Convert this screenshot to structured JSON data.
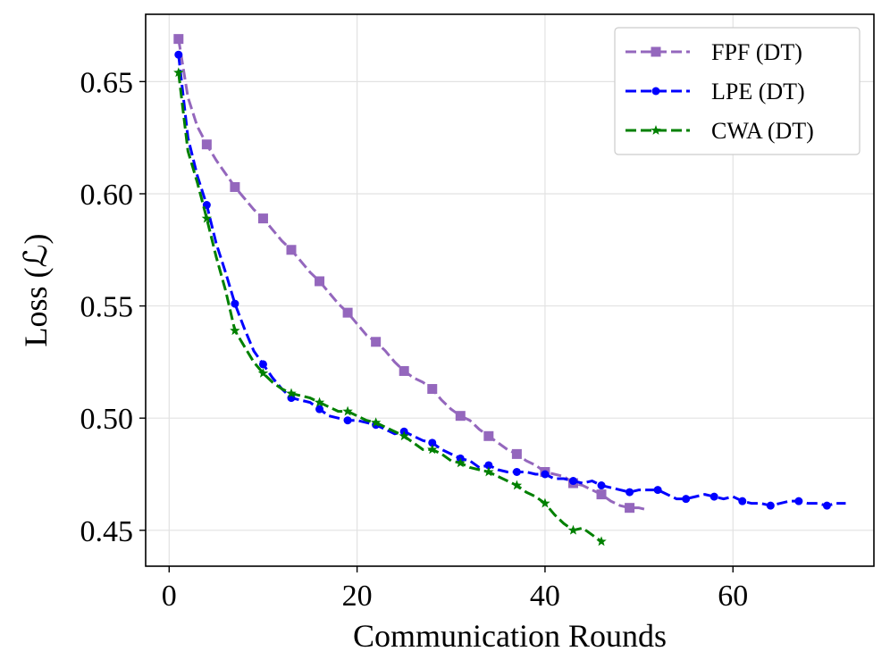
{
  "chart_data": {
    "type": "line",
    "title": "",
    "xlabel": "Communication Rounds",
    "ylabel": "Loss (ℒ)",
    "xlim": [
      -2.5,
      75
    ],
    "ylim": [
      0.434,
      0.68
    ],
    "xticks": [
      0,
      20,
      40,
      60
    ],
    "xtick_labels": [
      "0",
      "20",
      "40",
      "60"
    ],
    "yticks": [
      0.45,
      0.5,
      0.55,
      0.6,
      0.65
    ],
    "ytick_labels": [
      "0.45",
      "0.50",
      "0.55",
      "0.60",
      "0.65"
    ],
    "grid": true,
    "legend_position": "top-right",
    "series": [
      {
        "name": "FPF (DT)",
        "color": "#9467bd",
        "marker": "square",
        "x": [
          1,
          2,
          3,
          4,
          5,
          6,
          7,
          8,
          9,
          10,
          11,
          12,
          13,
          14,
          15,
          16,
          17,
          18,
          19,
          20,
          21,
          22,
          23,
          24,
          25,
          26,
          27,
          28,
          29,
          30,
          31,
          32,
          33,
          34,
          35,
          36,
          37,
          38,
          39,
          40,
          41,
          42,
          43,
          44,
          45,
          46,
          47,
          48,
          49,
          50,
          51
        ],
        "y": [
          0.669,
          0.643,
          0.63,
          0.622,
          0.615,
          0.609,
          0.603,
          0.598,
          0.593,
          0.589,
          0.584,
          0.579,
          0.575,
          0.57,
          0.565,
          0.561,
          0.556,
          0.551,
          0.547,
          0.542,
          0.537,
          0.534,
          0.53,
          0.525,
          0.521,
          0.518,
          0.516,
          0.513,
          0.508,
          0.504,
          0.501,
          0.499,
          0.495,
          0.492,
          0.489,
          0.486,
          0.484,
          0.481,
          0.479,
          0.476,
          0.475,
          0.474,
          0.471,
          0.47,
          0.468,
          0.466,
          0.463,
          0.461,
          0.46,
          0.46,
          0.459
        ],
        "marker_indices": [
          0,
          3,
          6,
          9,
          12,
          15,
          18,
          21,
          24,
          27,
          30,
          33,
          36,
          39,
          42,
          45,
          48
        ]
      },
      {
        "name": "LPE (DT)",
        "color": "#0000ff",
        "marker": "circle",
        "x": [
          1,
          2,
          3,
          4,
          5,
          6,
          7,
          8,
          9,
          10,
          11,
          12,
          13,
          14,
          15,
          16,
          17,
          18,
          19,
          20,
          21,
          22,
          23,
          24,
          25,
          26,
          27,
          28,
          29,
          30,
          31,
          32,
          33,
          34,
          35,
          36,
          37,
          38,
          39,
          40,
          41,
          42,
          43,
          44,
          45,
          46,
          47,
          48,
          49,
          50,
          51,
          52,
          53,
          54,
          55,
          56,
          57,
          58,
          59,
          60,
          61,
          62,
          63,
          64,
          65,
          66,
          67,
          68,
          69,
          70,
          71,
          72
        ],
        "y": [
          0.662,
          0.625,
          0.608,
          0.595,
          0.578,
          0.565,
          0.551,
          0.54,
          0.53,
          0.524,
          0.518,
          0.513,
          0.509,
          0.508,
          0.507,
          0.504,
          0.501,
          0.5,
          0.499,
          0.499,
          0.498,
          0.497,
          0.495,
          0.493,
          0.494,
          0.492,
          0.49,
          0.489,
          0.486,
          0.484,
          0.482,
          0.481,
          0.478,
          0.479,
          0.477,
          0.476,
          0.476,
          0.476,
          0.475,
          0.475,
          0.473,
          0.473,
          0.472,
          0.471,
          0.472,
          0.47,
          0.469,
          0.468,
          0.467,
          0.468,
          0.468,
          0.468,
          0.466,
          0.464,
          0.464,
          0.465,
          0.466,
          0.465,
          0.464,
          0.465,
          0.463,
          0.462,
          0.462,
          0.461,
          0.462,
          0.463,
          0.463,
          0.462,
          0.462,
          0.461,
          0.462,
          0.462
        ],
        "marker_indices": [
          0,
          3,
          6,
          9,
          12,
          15,
          18,
          21,
          24,
          27,
          30,
          33,
          36,
          39,
          42,
          45,
          48,
          51,
          54,
          57,
          60,
          63,
          66,
          69
        ]
      },
      {
        "name": "CWA (DT)",
        "color": "#008000",
        "marker": "star",
        "x": [
          1,
          2,
          3,
          4,
          5,
          6,
          7,
          8,
          9,
          10,
          11,
          12,
          13,
          14,
          15,
          16,
          17,
          18,
          19,
          20,
          21,
          22,
          23,
          24,
          25,
          26,
          27,
          28,
          29,
          30,
          31,
          32,
          33,
          34,
          35,
          36,
          37,
          38,
          39,
          40,
          41,
          42,
          43,
          44,
          45,
          46
        ],
        "y": [
          0.654,
          0.619,
          0.605,
          0.589,
          0.572,
          0.557,
          0.539,
          0.532,
          0.525,
          0.52,
          0.516,
          0.513,
          0.511,
          0.51,
          0.509,
          0.507,
          0.505,
          0.503,
          0.503,
          0.501,
          0.499,
          0.498,
          0.496,
          0.494,
          0.492,
          0.489,
          0.486,
          0.486,
          0.484,
          0.481,
          0.48,
          0.478,
          0.477,
          0.476,
          0.474,
          0.472,
          0.47,
          0.467,
          0.465,
          0.462,
          0.457,
          0.453,
          0.45,
          0.451,
          0.448,
          0.445
        ],
        "marker_indices": [
          0,
          3,
          6,
          9,
          12,
          15,
          18,
          21,
          24,
          27,
          30,
          33,
          36,
          39,
          42,
          45
        ]
      }
    ]
  }
}
